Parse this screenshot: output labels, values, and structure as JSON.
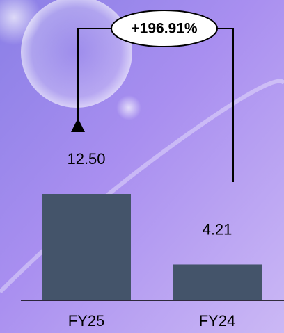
{
  "chart_data": {
    "type": "bar",
    "categories": [
      "FY25",
      "FY24"
    ],
    "values": [
      12.5,
      4.21
    ],
    "value_labels": [
      "12.50",
      "4.21"
    ],
    "color": "#44546a",
    "annotation": "+196.91%"
  }
}
